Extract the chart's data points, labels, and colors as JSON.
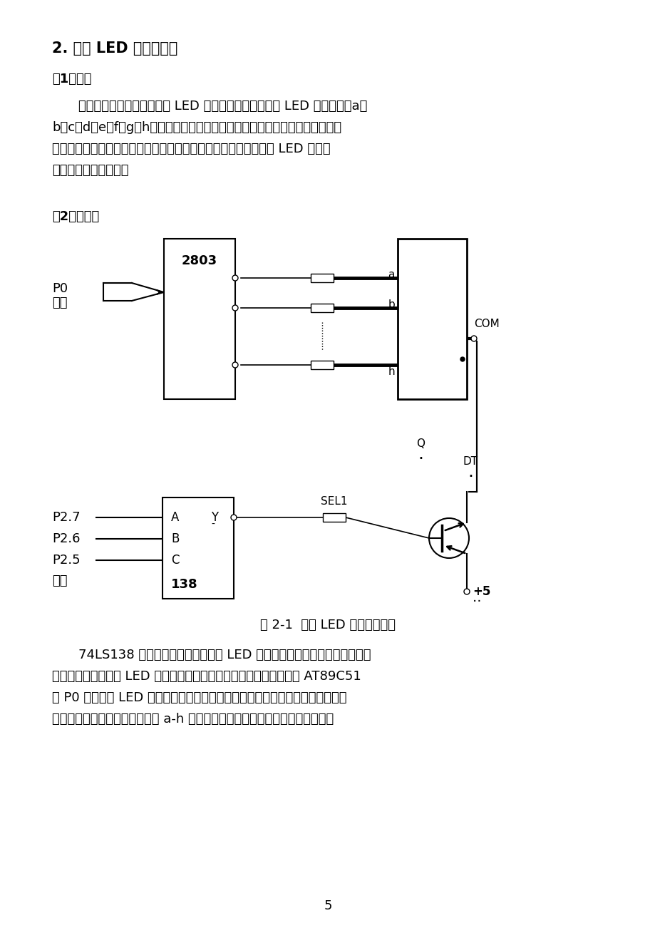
{
  "bg_color": "#ffffff",
  "title": "2. 七段 LED 显示器自检",
  "section1": "（1）目的",
  "section2": "（2）硬件图",
  "para1_line1": "通过程序编译，检测每一个 LED 发光管是否正常。七段 LED 显示器中，a、",
  "para1_line2": "b、c、d、e、f、g、h分别对应不同的编码，因此可以通过输入不同的编码，来",
  "para1_line3": "检测每一个二极管的好坏。如果编码对应的二极管发光，说明七段 LED 显示器",
  "para1_line4": "对应的二极管是好的。",
  "fig_caption": "图 2-1  七段 LED 显示器电路图",
  "para2_line1": "74LS138 译码器的作用是控制五盖 LED 的打开与关闭，输出低电平有效，",
  "para2_line2": "三极管导通。当某一 LED 打开时，接下来调用字形显示子程序，并从 AT89C51",
  "para2_line3": "的 P0 端口送至 LED 所对应的各个发光二极管。每个发光二极管对应一个字形编",
  "para2_line4": "码，该子程序的作用是依次使从 a-h 的二极管亮，检查每个发光二极管的状况。",
  "page_num": "5"
}
